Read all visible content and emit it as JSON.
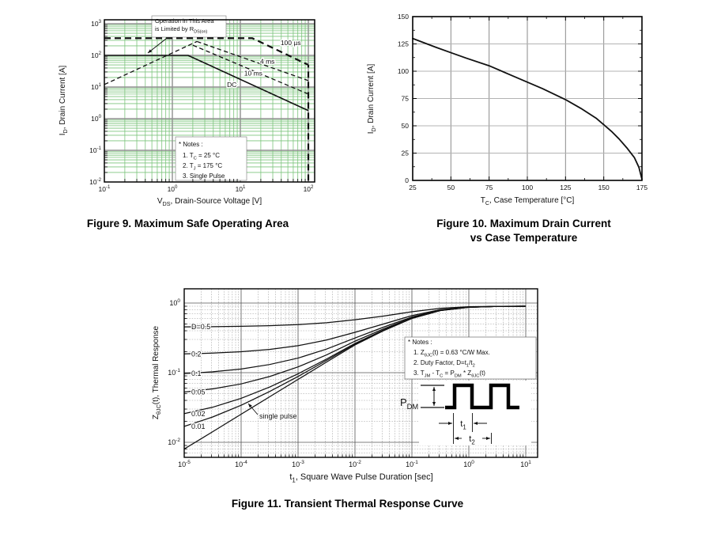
{
  "page": {
    "background": "#ffffff"
  },
  "colors": {
    "soa_grid_green": "#7cc47c",
    "decade_gray": "#8f8f8f",
    "grid_gray": "#aaaaaa",
    "curve_black": "#111111"
  },
  "chart_data": [
    {
      "id": "fig9",
      "type": "line",
      "scale": "log-log",
      "caption": "Figure 9. Maximum Safe Operating Area",
      "xlabel": "V_{DS}, Drain-Source Voltage [V]",
      "ylabel": "I_{D}, Drain Current [A]",
      "xlim": [
        0.1,
        100
      ],
      "ylim": [
        0.01,
        1000
      ],
      "x_ticks_exp": [
        -1,
        0,
        1,
        2
      ],
      "y_ticks_exp": [
        -2,
        -1,
        0,
        1,
        2,
        3
      ],
      "grid": "log minor green, decade gray",
      "annotation_lines": [
        "Operation in This Area",
        "is Limited by R_{DS(on)}"
      ],
      "notes": [
        "* Notes :",
        "1. T_{C} = 25 °C",
        "2. T_{J} = 175 °C",
        "3. Single Pulse"
      ],
      "series": [
        {
          "name": "rdson-limit-line",
          "style": "dashed",
          "width": 1.3,
          "pts": [
            [
              0.1,
              12
            ],
            [
              2.3,
              275
            ]
          ]
        },
        {
          "name": "pulse-100us",
          "label": "100 µs",
          "style": "dashed",
          "width": 2.2,
          "pts": [
            [
              0.1,
              350
            ],
            [
              15,
              350
            ],
            [
              100,
              50
            ]
          ],
          "label_pos": [
            55,
            210
          ]
        },
        {
          "name": "pulse-4ms",
          "label": "4 ms",
          "style": "dashed",
          "width": 1.3,
          "pts": [
            [
              2.3,
              275
            ],
            [
              100,
              16
            ]
          ],
          "label_pos": [
            25,
            55
          ]
        },
        {
          "name": "pulse-10ms",
          "label": "10 ms",
          "style": "dashed",
          "width": 1.3,
          "pts": [
            [
              2.0,
              210
            ],
            [
              100,
              6
            ]
          ],
          "label_pos": [
            15.5,
            23
          ]
        },
        {
          "name": "dc",
          "label": "DC",
          "style": "solid",
          "width": 1.6,
          "pts": [
            [
              0.1,
              100
            ],
            [
              1.7,
              100
            ],
            [
              100,
              1.8
            ]
          ],
          "label_pos": [
            7.5,
            10
          ]
        },
        {
          "name": "vdss-limit",
          "style": "dashed",
          "width": 2.2,
          "pts": [
            [
              100,
              0.011
            ],
            [
              100,
              50
            ]
          ]
        }
      ]
    },
    {
      "id": "fig10",
      "type": "line",
      "scale": "linear",
      "caption_lines": [
        "Figure 10. Maximum Drain Current",
        "vs Case Temperature"
      ],
      "xlabel": "T_{C}, Case Temperature [°C]",
      "ylabel": "I_{D}, Drain Current [A]",
      "xlim": [
        25,
        175
      ],
      "ylim": [
        0,
        150
      ],
      "x_ticks": [
        25,
        50,
        75,
        100,
        125,
        150,
        175
      ],
      "y_ticks": [
        0,
        25,
        50,
        75,
        100,
        125,
        150
      ],
      "grid": "major gray both axes",
      "series": [
        {
          "name": "max-drain-current",
          "style": "solid",
          "width": 1.8,
          "pts": [
            [
              25,
              130
            ],
            [
              40,
              122
            ],
            [
              50,
              117
            ],
            [
              60,
              112
            ],
            [
              75,
              105
            ],
            [
              90,
              96
            ],
            [
              100,
              90
            ],
            [
              110,
              84
            ],
            [
              125,
              74
            ],
            [
              135,
              66
            ],
            [
              145,
              57
            ],
            [
              150,
              51
            ],
            [
              155,
              45
            ],
            [
              160,
              38
            ],
            [
              165,
              30
            ],
            [
              170,
              21
            ],
            [
              173,
              12
            ],
            [
              175,
              1
            ]
          ]
        }
      ]
    },
    {
      "id": "fig11",
      "type": "line",
      "scale": "log-log",
      "caption": "Figure 11. Transient Thermal Response Curve",
      "xlabel": "t_{1}, Square Wave Pulse Duration [sec]",
      "ylabel": "Z_{θJC}(t), Thermal Response",
      "xlim": [
        1e-05,
        10
      ],
      "ylim": [
        0.0065,
        1.45
      ],
      "x_ticks_exp": [
        -5,
        -4,
        -3,
        -2,
        -1,
        0,
        1
      ],
      "y_ticks_exp": [
        -2,
        -1,
        0
      ],
      "grid": "decade solid, minors dashed",
      "x": [
        1e-05,
        3.16e-05,
        0.0001,
        0.000316,
        0.001,
        0.00316,
        0.01,
        0.0316,
        0.1,
        0.316,
        1,
        3.16,
        10
      ],
      "series": [
        {
          "name": "duty-0.5",
          "label": "D=0.5",
          "values": [
            0.454,
            0.457,
            0.463,
            0.473,
            0.49,
            0.521,
            0.575,
            0.65,
            0.75,
            0.84,
            0.885,
            0.897,
            0.9
          ]
        },
        {
          "name": "duty-0.2",
          "label": "0.2",
          "values": [
            0.186,
            0.191,
            0.2,
            0.216,
            0.244,
            0.294,
            0.38,
            0.5,
            0.66,
            0.804,
            0.876,
            0.896,
            0.9
          ]
        },
        {
          "name": "duty-0.1",
          "label": "0.1",
          "values": [
            0.097,
            0.103,
            0.113,
            0.131,
            0.162,
            0.218,
            0.315,
            0.45,
            0.63,
            0.792,
            0.873,
            0.896,
            0.9
          ]
        },
        {
          "name": "duty-0.05",
          "label": "0.05",
          "values": [
            0.0526,
            0.0585,
            0.069,
            0.088,
            0.121,
            0.18,
            0.283,
            0.425,
            0.615,
            0.786,
            0.872,
            0.895,
            0.9
          ]
        },
        {
          "name": "duty-0.02",
          "label": "0.02",
          "values": [
            0.0258,
            0.0319,
            0.0428,
            0.0621,
            0.0964,
            0.157,
            0.263,
            0.41,
            0.606,
            0.782,
            0.871,
            0.895,
            0.9
          ]
        },
        {
          "name": "duty-0.01",
          "label": "0.01",
          "values": [
            0.0169,
            0.0231,
            0.034,
            0.0536,
            0.0882,
            0.15,
            0.2565,
            0.405,
            0.603,
            0.781,
            0.87,
            0.895,
            0.9
          ]
        },
        {
          "name": "single-pulse",
          "label": "single pulse",
          "values": [
            0.008,
            0.0142,
            0.0253,
            0.045,
            0.08,
            0.142,
            0.25,
            0.4,
            0.6,
            0.78,
            0.87,
            0.895,
            0.9
          ]
        }
      ],
      "notes": [
        "* Notes :",
        "1. Z_{θJC}(t) = 0.63 °C/W Max.",
        "2. Duty Factor, D=t_{1}/t_{2}",
        "3. T_{JM} - T_{C} = P_{DM} * Z_{θJC}(t)"
      ],
      "waveform_labels": {
        "pdm": "P_{DM}",
        "t1": "t_{1}",
        "t2": "t_{2}"
      }
    }
  ]
}
